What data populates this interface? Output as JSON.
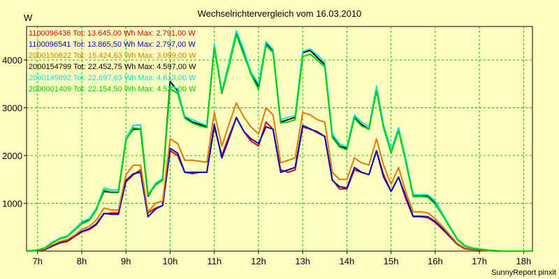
{
  "chart_data": {
    "type": "line",
    "title": "Wechselrichtervergleich vom 16.03.2010",
    "y_unit": "W",
    "footer": "SunnyReport pinxit",
    "grid": true,
    "legend_placement": "top-left",
    "xlim": [
      6.75,
      18.2
    ],
    "ylim": [
      0,
      4700
    ],
    "x_ticks": [
      7,
      8,
      9,
      10,
      11,
      12,
      13,
      14,
      15,
      16,
      17,
      18
    ],
    "x_tick_labels": [
      "7h",
      "8h",
      "9h",
      "10h",
      "11h",
      "12h",
      "13h",
      "14h",
      "15h",
      "16h",
      "17h",
      "18h"
    ],
    "y_ticks": [
      1000,
      2000,
      3000,
      4000
    ],
    "y_tick_labels": [
      "1000",
      "2000",
      "3000",
      "4000"
    ],
    "x": [
      6.75,
      7.0,
      7.17,
      7.33,
      7.5,
      7.67,
      7.83,
      8.0,
      8.17,
      8.33,
      8.5,
      8.67,
      8.83,
      9.0,
      9.17,
      9.33,
      9.5,
      9.67,
      9.83,
      10.0,
      10.17,
      10.33,
      10.5,
      10.67,
      10.83,
      11.0,
      11.17,
      11.33,
      11.5,
      11.67,
      11.83,
      12.0,
      12.17,
      12.33,
      12.5,
      12.67,
      12.83,
      13.0,
      13.17,
      13.33,
      13.5,
      13.67,
      13.83,
      14.0,
      14.17,
      14.33,
      14.5,
      14.67,
      14.83,
      15.0,
      15.17,
      15.33,
      15.5,
      15.67,
      15.83,
      16.0,
      16.17,
      16.33,
      16.5,
      16.67,
      16.83,
      17.0,
      17.17,
      17.33,
      17.5,
      17.67,
      17.83,
      18.0,
      18.17
    ],
    "series": [
      {
        "name": "1100096436 Tot: 13.645,00 Wh Max: 2.791,00 W",
        "color": "#e00000",
        "values": [
          0,
          10,
          30,
          100,
          170,
          200,
          300,
          400,
          450,
          550,
          780,
          800,
          800,
          1450,
          1600,
          1700,
          800,
          900,
          950,
          2100,
          2000,
          1650,
          1620,
          1650,
          1650,
          2600,
          2000,
          2400,
          2790,
          2500,
          2300,
          2200,
          2700,
          2550,
          1700,
          1650,
          1700,
          2600,
          2550,
          2500,
          2400,
          1500,
          1300,
          1300,
          1700,
          1650,
          1600,
          2100,
          1600,
          1250,
          1550,
          1100,
          720,
          720,
          700,
          600,
          450,
          300,
          140,
          50,
          30,
          20,
          10,
          5,
          0,
          0,
          0,
          0,
          0
        ]
      },
      {
        "name": "1100096541 Tot: 13.865,50 Wh Max: 2.797,00 W",
        "color": "#0000c0",
        "values": [
          0,
          10,
          40,
          110,
          180,
          220,
          320,
          410,
          470,
          570,
          790,
          770,
          770,
          1480,
          1620,
          1650,
          720,
          880,
          960,
          2150,
          2050,
          1650,
          1650,
          1650,
          1650,
          2650,
          1950,
          2350,
          2797,
          2500,
          2350,
          2250,
          2600,
          2550,
          1650,
          1700,
          1750,
          2630,
          2560,
          2480,
          2400,
          1480,
          1350,
          1320,
          1750,
          1650,
          1600,
          2100,
          1550,
          1250,
          1550,
          1150,
          730,
          730,
          720,
          620,
          470,
          310,
          150,
          60,
          35,
          25,
          12,
          6,
          0,
          0,
          0,
          0,
          0
        ]
      },
      {
        "name": "2000150622 Tot: 15.424,63 Wh Max: 3.099,00 W",
        "color": "#e07800",
        "values": [
          0,
          15,
          50,
          130,
          200,
          240,
          330,
          450,
          520,
          650,
          900,
          860,
          860,
          1600,
          1800,
          1800,
          820,
          1000,
          1050,
          2350,
          2250,
          1900,
          1900,
          1880,
          1860,
          2900,
          2200,
          2650,
          3099,
          2800,
          2600,
          2450,
          3000,
          2850,
          1850,
          1900,
          1950,
          2900,
          2850,
          2750,
          2700,
          1650,
          1500,
          1500,
          1950,
          1850,
          1800,
          2350,
          1800,
          1400,
          1750,
          1250,
          820,
          820,
          800,
          680,
          510,
          340,
          160,
          65,
          40,
          25,
          12,
          6,
          0,
          0,
          0,
          0,
          0
        ]
      },
      {
        "name": "2000154799 Tot: 22.452,75 Wh Max: 4.597,00 W",
        "color": "#000000",
        "values": [
          0,
          20,
          70,
          180,
          260,
          310,
          450,
          590,
          660,
          880,
          1250,
          1230,
          1230,
          2350,
          2550,
          2550,
          1150,
          1400,
          1500,
          3550,
          3350,
          2800,
          2700,
          2650,
          2600,
          4300,
          3300,
          3900,
          4597,
          4150,
          3700,
          3450,
          4350,
          4200,
          2700,
          2750,
          2800,
          4150,
          4200,
          4050,
          3900,
          2400,
          2200,
          2150,
          2800,
          2650,
          2550,
          3400,
          2600,
          2100,
          2550,
          1900,
          1150,
          1150,
          1150,
          1000,
          750,
          500,
          250,
          110,
          60,
          40,
          20,
          10,
          0,
          0,
          0,
          0,
          0
        ]
      },
      {
        "name": "2000149892 Tot: 22.697,63 Wh Max: 4.613,00 W",
        "color": "#00e0e0",
        "values": [
          0,
          20,
          75,
          190,
          270,
          320,
          460,
          610,
          680,
          900,
          1320,
          1280,
          1280,
          2370,
          2630,
          2640,
          1180,
          1420,
          1520,
          3450,
          3400,
          2820,
          2750,
          2680,
          2630,
          4330,
          3350,
          3950,
          4613,
          4200,
          3750,
          3500,
          4380,
          4220,
          2750,
          2800,
          2830,
          4180,
          4230,
          4100,
          3950,
          2450,
          2250,
          2180,
          2850,
          2700,
          2600,
          3450,
          2650,
          2120,
          2580,
          1950,
          1180,
          1180,
          1180,
          1050,
          780,
          520,
          260,
          120,
          70,
          45,
          25,
          12,
          0,
          0,
          0,
          0,
          0
        ]
      },
      {
        "name": "2000001409 Tot: 22.154,50 Wh Max: 4.522,00 W",
        "color": "#00d000",
        "values": [
          0,
          20,
          65,
          170,
          250,
          300,
          430,
          570,
          640,
          860,
          1280,
          1240,
          1240,
          2320,
          2580,
          2560,
          1170,
          1380,
          1480,
          3400,
          3300,
          2780,
          2680,
          2620,
          2580,
          4250,
          3300,
          3850,
          4522,
          4100,
          3700,
          3380,
          4300,
          4150,
          2680,
          2700,
          2750,
          4070,
          4120,
          4000,
          3850,
          2380,
          2180,
          2120,
          2780,
          2620,
          2550,
          3350,
          2580,
          2050,
          2520,
          1880,
          1140,
          1140,
          1130,
          980,
          740,
          490,
          240,
          105,
          60,
          40,
          20,
          10,
          0,
          0,
          0,
          0,
          0
        ]
      }
    ]
  }
}
